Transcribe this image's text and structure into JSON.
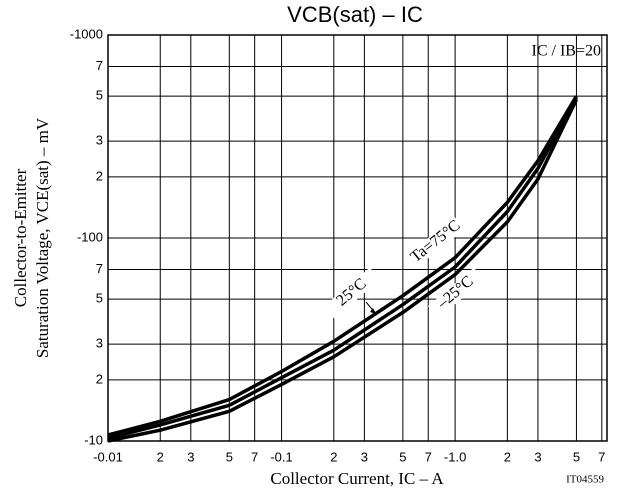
{
  "chart_data": {
    "type": "line",
    "title": "VCB(sat) – IC",
    "annotation": "IC / IB=20",
    "figure_id": "IT04559",
    "x_label": "Collector Current, IC – A",
    "y_label": [
      "Collector-to-Emitter",
      "Saturation Voltage, VCE(sat) – mV"
    ],
    "log_x": true,
    "log_y": true,
    "grid": true,
    "xlim": [
      -0.01,
      -7.5
    ],
    "ylim": [
      -10,
      -1000
    ],
    "xticks": [
      -0.01,
      {
        "value": -0.02,
        "label": "2"
      },
      {
        "value": -0.03,
        "label": "3"
      },
      {
        "value": -0.05,
        "label": "5"
      },
      {
        "value": -0.07,
        "label": "7"
      },
      -0.1,
      {
        "value": -0.2,
        "label": "2"
      },
      {
        "value": -0.3,
        "label": "3"
      },
      {
        "value": -0.5,
        "label": "5"
      },
      {
        "value": -0.7,
        "label": "7"
      },
      {
        "value": -1,
        "label": "-1.0"
      },
      {
        "value": -2,
        "label": "2"
      },
      {
        "value": -3,
        "label": "3"
      },
      {
        "value": -5,
        "label": "5"
      },
      {
        "value": -7,
        "label": "7"
      }
    ],
    "yticks": [
      -1000,
      {
        "value": -700,
        "label": "7"
      },
      {
        "value": -500,
        "label": "5"
      },
      {
        "value": -300,
        "label": "3"
      },
      {
        "value": -200,
        "label": "2"
      },
      -100,
      {
        "value": -70,
        "label": "7"
      },
      {
        "value": -50,
        "label": "5"
      },
      {
        "value": -30,
        "label": "3"
      },
      {
        "value": -20,
        "label": "2"
      },
      -10
    ],
    "x": [
      -0.01,
      -0.02,
      -0.05,
      -0.1,
      -0.2,
      -0.5,
      -1,
      -2,
      -3,
      -5
    ],
    "series": [
      {
        "name": "Ta=75°C",
        "color": "#000000",
        "values": [
          -10.7,
          -12.5,
          -16,
          -22,
          -31,
          -52,
          -80,
          -150,
          -240,
          -500
        ]
      },
      {
        "name": "25°C",
        "color": "#000000",
        "values": [
          -10.3,
          -12,
          -15,
          -20.5,
          -28,
          -47,
          -72,
          -135,
          -220,
          -490
        ]
      },
      {
        "name": "–25°C",
        "color": "#000000",
        "values": [
          -10,
          -11.3,
          -14,
          -19,
          -26,
          -43,
          -66,
          -120,
          -195,
          -480
        ]
      }
    ]
  }
}
